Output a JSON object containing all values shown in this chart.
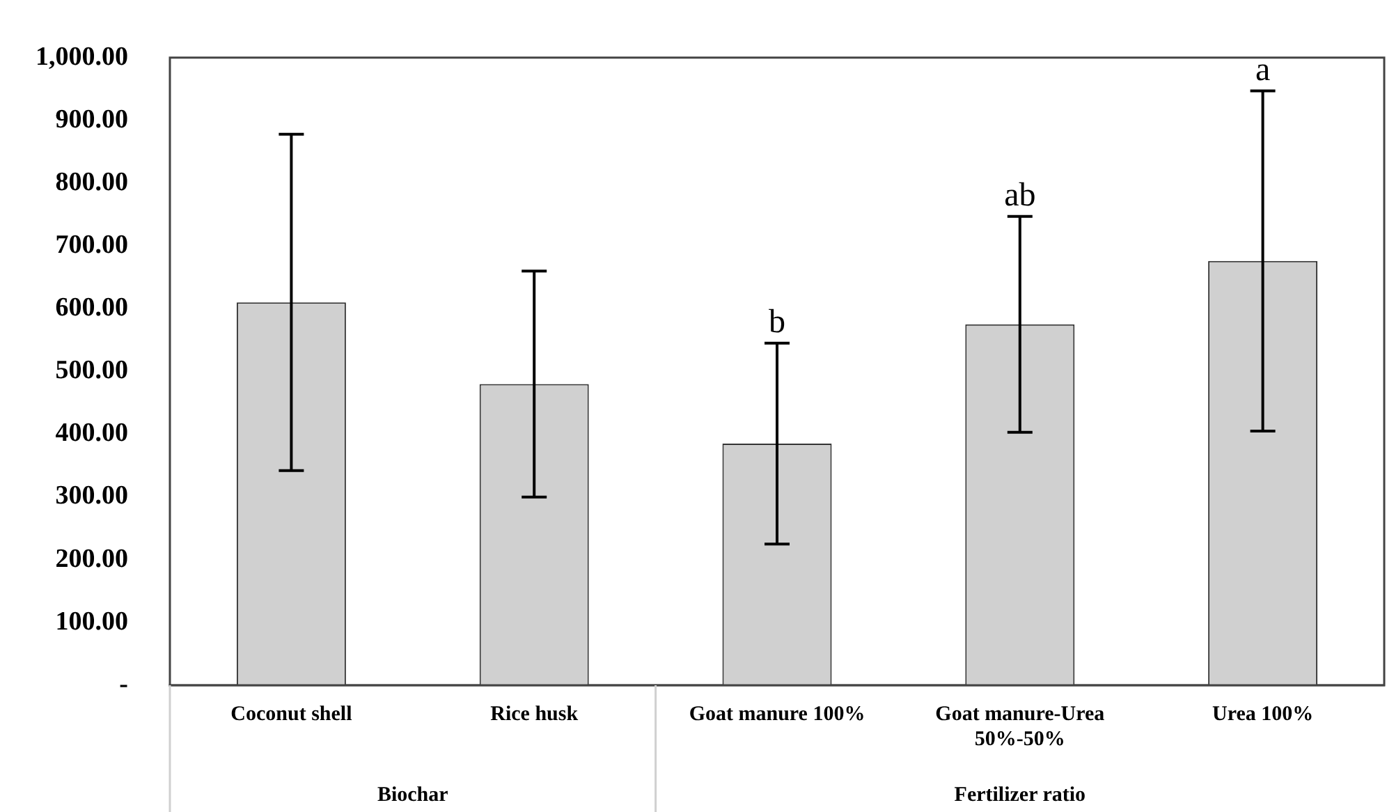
{
  "chart_data": {
    "type": "bar",
    "categories": [
      "Coconut shell",
      "Rice husk",
      "Goat manure 100%",
      "Goat manure-Urea 50%-50%",
      "Urea 100%"
    ],
    "values": [
      610,
      480,
      385,
      575,
      676
    ],
    "errors": [
      268,
      180,
      160,
      172,
      271
    ],
    "color": "#d0d0d0",
    "ylim": [
      0,
      1000
    ],
    "yticks": [
      {
        "value": 0,
        "label": "-"
      },
      {
        "value": 100,
        "label": "100.00"
      },
      {
        "value": 200,
        "label": "200.00"
      },
      {
        "value": 300,
        "label": "300.00"
      },
      {
        "value": 400,
        "label": "400.00"
      },
      {
        "value": 500,
        "label": "500.00"
      },
      {
        "value": 600,
        "label": "600.00"
      },
      {
        "value": 700,
        "label": "700.00"
      },
      {
        "value": 800,
        "label": "800.00"
      },
      {
        "value": 900,
        "label": "900.00"
      },
      {
        "value": 1000,
        "label": "1,000.00"
      }
    ],
    "grid": false,
    "annotations": [
      {
        "text": "b",
        "x": "Goat manure 100%",
        "y": 545
      },
      {
        "text": "ab",
        "x": "Goat manure-Urea 50%-50%",
        "y": 747
      },
      {
        "text": "a",
        "x": "Urea 100%",
        "y": 947
      },
      "Biochar",
      "Fertilizer ratio"
    ]
  }
}
